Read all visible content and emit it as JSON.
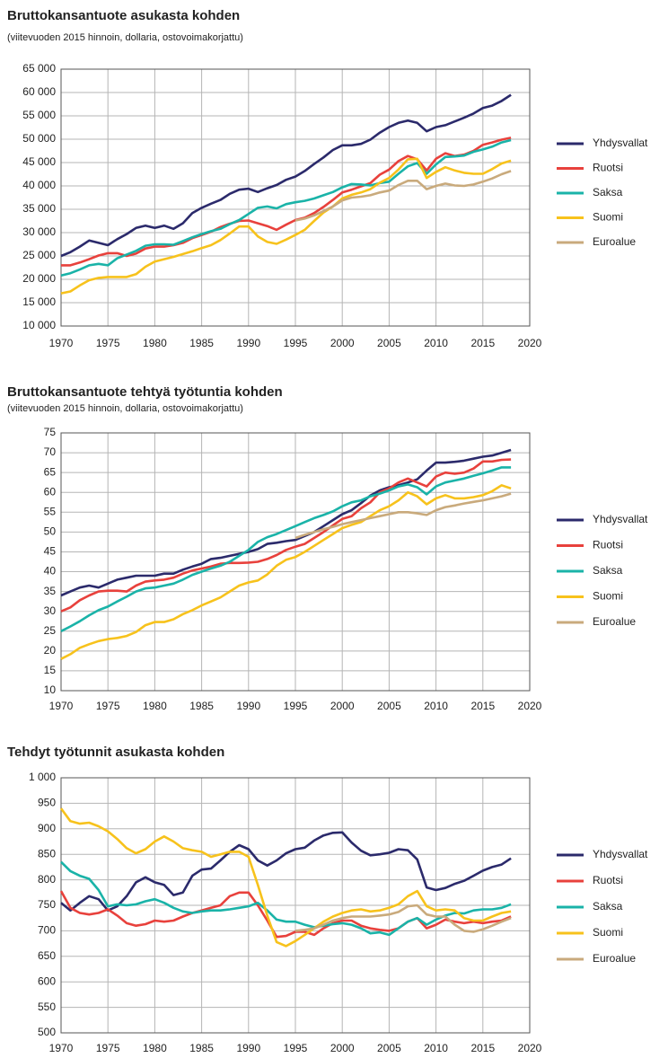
{
  "chart_data": [
    {
      "type": "line",
      "title": "Bruttokansantuote asukasta kohden",
      "subtitle": "(viitevuoden 2015 hinnoin, dollaria, ostovoimakorjattu)",
      "x": [
        1970,
        1971,
        1972,
        1973,
        1974,
        1975,
        1976,
        1977,
        1978,
        1979,
        1980,
        1981,
        1982,
        1983,
        1984,
        1985,
        1986,
        1987,
        1988,
        1989,
        1990,
        1991,
        1992,
        1993,
        1994,
        1995,
        1996,
        1997,
        1998,
        1999,
        2000,
        2001,
        2002,
        2003,
        2004,
        2005,
        2006,
        2007,
        2008,
        2009,
        2010,
        2011,
        2012,
        2013,
        2014,
        2015,
        2016,
        2017,
        2018
      ],
      "xlim": [
        1970,
        2020
      ],
      "xticks": [
        1970,
        1975,
        1980,
        1985,
        1990,
        1995,
        2000,
        2005,
        2010,
        2015,
        2020
      ],
      "ylim": [
        10000,
        65000
      ],
      "yticks": [
        {
          "value": 10000,
          "label": "10 000"
        },
        {
          "value": 15000,
          "label": "15 000"
        },
        {
          "value": 20000,
          "label": "20 000"
        },
        {
          "value": 25000,
          "label": "25 000"
        },
        {
          "value": 30000,
          "label": "30 000"
        },
        {
          "value": 35000,
          "label": "35 000"
        },
        {
          "value": 40000,
          "label": "40 000"
        },
        {
          "value": 45000,
          "label": "45 000"
        },
        {
          "value": 50000,
          "label": "50 000"
        },
        {
          "value": 55000,
          "label": "55 000"
        },
        {
          "value": 60000,
          "label": "60 000"
        },
        {
          "value": 65000,
          "label": "65 000"
        }
      ],
      "grid": true,
      "series": [
        {
          "name": "Yhdysvallat",
          "color": "#2b2a6b",
          "values": [
            25000,
            25800,
            27000,
            28300,
            27800,
            27300,
            28600,
            29700,
            31000,
            31500,
            31000,
            31500,
            30800,
            32000,
            34200,
            35300,
            36200,
            37000,
            38300,
            39200,
            39400,
            38700,
            39500,
            40200,
            41300,
            42000,
            43200,
            44700,
            46100,
            47700,
            48700,
            48700,
            49000,
            49900,
            51400,
            52600,
            53500,
            54000,
            53500,
            51700,
            52600,
            53000,
            53800,
            54600,
            55500,
            56700,
            57200,
            58200,
            59500
          ]
        },
        {
          "name": "Ruotsi",
          "color": "#e8413c",
          "values": [
            23000,
            23000,
            23600,
            24300,
            25100,
            25600,
            25600,
            25000,
            25500,
            26600,
            27000,
            27000,
            27300,
            27800,
            28800,
            29500,
            30200,
            31200,
            31900,
            32500,
            32600,
            32000,
            31400,
            30600,
            31700,
            32700,
            33200,
            34200,
            35500,
            37000,
            38600,
            39200,
            39900,
            40600,
            42400,
            43500,
            45300,
            46400,
            45700,
            43300,
            45800,
            47000,
            46400,
            46700,
            47500,
            48800,
            49300,
            49900,
            50300
          ]
        },
        {
          "name": "Saksa",
          "color": "#1ab3a8",
          "values": [
            20800,
            21300,
            22100,
            23000,
            23300,
            23000,
            24500,
            25300,
            26100,
            27200,
            27500,
            27500,
            27400,
            28200,
            29000,
            29700,
            30300,
            30800,
            31800,
            32700,
            34000,
            35300,
            35600,
            35200,
            36100,
            36500,
            36800,
            37300,
            38000,
            38700,
            39700,
            40400,
            40300,
            40100,
            40600,
            40900,
            42600,
            44200,
            44900,
            42600,
            44600,
            46200,
            46300,
            46500,
            47300,
            47800,
            48400,
            49300,
            49800
          ]
        },
        {
          "name": "Suomi",
          "color": "#f7c21c",
          "values": [
            17000,
            17400,
            18700,
            19800,
            20300,
            20500,
            20500,
            20500,
            21100,
            22700,
            23800,
            24300,
            24800,
            25400,
            26000,
            26700,
            27300,
            28400,
            29800,
            31300,
            31300,
            29200,
            28000,
            27600,
            28500,
            29500,
            30600,
            32500,
            34300,
            35600,
            37300,
            38100,
            38600,
            39300,
            40700,
            41700,
            43500,
            45700,
            45800,
            41700,
            43000,
            44000,
            43300,
            42800,
            42600,
            42600,
            43600,
            44800,
            45400
          ]
        },
        {
          "name": "Euroalue",
          "color": "#c9aa7c",
          "values": [
            null,
            null,
            null,
            null,
            null,
            null,
            null,
            null,
            null,
            null,
            null,
            null,
            null,
            null,
            null,
            null,
            null,
            null,
            null,
            null,
            null,
            null,
            null,
            null,
            null,
            32600,
            33000,
            33700,
            34600,
            35600,
            36900,
            37500,
            37700,
            38000,
            38600,
            39000,
            40200,
            41100,
            41100,
            39300,
            40000,
            40500,
            40100,
            40000,
            40300,
            40900,
            41600,
            42500,
            43200
          ]
        }
      ]
    },
    {
      "type": "line",
      "title": "Bruttokansantuote tehtyä työtuntia kohden",
      "subtitle": "(viitevuoden 2015 hinnoin, dollaria, ostovoimakorjattu)",
      "x": [
        1970,
        1971,
        1972,
        1973,
        1974,
        1975,
        1976,
        1977,
        1978,
        1979,
        1980,
        1981,
        1982,
        1983,
        1984,
        1985,
        1986,
        1987,
        1988,
        1989,
        1990,
        1991,
        1992,
        1993,
        1994,
        1995,
        1996,
        1997,
        1998,
        1999,
        2000,
        2001,
        2002,
        2003,
        2004,
        2005,
        2006,
        2007,
        2008,
        2009,
        2010,
        2011,
        2012,
        2013,
        2014,
        2015,
        2016,
        2017,
        2018
      ],
      "xlim": [
        1970,
        2020
      ],
      "xticks": [
        1970,
        1975,
        1980,
        1985,
        1990,
        1995,
        2000,
        2005,
        2010,
        2015,
        2020
      ],
      "ylim": [
        10,
        75
      ],
      "yticks": [
        10,
        15,
        20,
        25,
        30,
        35,
        40,
        45,
        50,
        55,
        60,
        65,
        70,
        75
      ],
      "grid": true,
      "series": [
        {
          "name": "Yhdysvallat",
          "color": "#2b2a6b",
          "values": [
            34,
            35,
            36,
            36.5,
            36,
            37,
            38,
            38.5,
            39,
            39,
            39,
            39.5,
            39.5,
            40.5,
            41.3,
            42,
            43.2,
            43.5,
            44,
            44.5,
            45,
            45.7,
            47,
            47.3,
            47.7,
            48,
            49,
            50,
            51.5,
            53,
            54.5,
            55.5,
            57.3,
            59.2,
            60.5,
            61.3,
            61.8,
            62.5,
            63.3,
            65.5,
            67.5,
            67.5,
            67.7,
            68,
            68.5,
            69,
            69.3,
            70,
            70.7
          ]
        },
        {
          "name": "Ruotsi",
          "color": "#e8413c",
          "values": [
            30,
            31,
            32.8,
            34,
            35,
            35.2,
            35.2,
            35,
            36.5,
            37.5,
            37.8,
            38,
            38.5,
            39.5,
            40.3,
            40.8,
            41.3,
            42,
            42.2,
            42.2,
            42.3,
            42.5,
            43.2,
            44.2,
            45.5,
            46.3,
            47,
            48.5,
            50,
            51.7,
            53.3,
            54,
            56,
            57.5,
            60,
            61,
            62.5,
            63.5,
            62.5,
            61.5,
            64,
            65,
            64.7,
            65,
            66,
            67.8,
            67.8,
            68.2,
            68.3
          ]
        },
        {
          "name": "Saksa",
          "color": "#1ab3a8",
          "values": [
            25,
            26.2,
            27.5,
            29,
            30.3,
            31.2,
            32.5,
            33.7,
            35,
            35.8,
            36,
            36.5,
            37,
            38,
            39.2,
            40,
            40.8,
            41.5,
            42.5,
            44,
            45.5,
            47.5,
            48.7,
            49.5,
            50.5,
            51.5,
            52.5,
            53.5,
            54.3,
            55.2,
            56.5,
            57.5,
            58,
            59,
            59.7,
            60.5,
            61.5,
            62,
            61.3,
            59.5,
            61.5,
            62.5,
            63,
            63.5,
            64.2,
            64.8,
            65.5,
            66.3,
            66.3
          ]
        },
        {
          "name": "Suomi",
          "color": "#f7c21c",
          "values": [
            18,
            19.2,
            20.8,
            21.7,
            22.5,
            23,
            23.3,
            23.8,
            24.8,
            26.5,
            27.3,
            27.3,
            28,
            29.3,
            30.3,
            31.5,
            32.5,
            33.5,
            35,
            36.5,
            37.3,
            37.8,
            39.3,
            41.5,
            43,
            43.7,
            45,
            46.5,
            48,
            49.5,
            51,
            51.8,
            52.5,
            54,
            55.5,
            56.5,
            58,
            60,
            59,
            57,
            58.5,
            59.3,
            58.5,
            58.5,
            58.8,
            59.3,
            60.3,
            61.8,
            61
          ]
        },
        {
          "name": "Euroalue",
          "color": "#c9aa7c",
          "values": [
            null,
            null,
            null,
            null,
            null,
            null,
            null,
            null,
            null,
            null,
            null,
            null,
            null,
            null,
            null,
            null,
            null,
            null,
            null,
            null,
            null,
            null,
            null,
            null,
            null,
            48.5,
            49.3,
            50,
            50.7,
            51.3,
            52,
            52.5,
            53,
            53.5,
            54,
            54.5,
            55,
            55,
            54.7,
            54.3,
            55.5,
            56.3,
            56.7,
            57.2,
            57.6,
            58,
            58.5,
            59,
            59.7
          ]
        }
      ]
    },
    {
      "type": "line",
      "title": "Tehdyt työtunnit asukasta kohden",
      "x": [
        1970,
        1971,
        1972,
        1973,
        1974,
        1975,
        1976,
        1977,
        1978,
        1979,
        1980,
        1981,
        1982,
        1983,
        1984,
        1985,
        1986,
        1987,
        1988,
        1989,
        1990,
        1991,
        1992,
        1993,
        1994,
        1995,
        1996,
        1997,
        1998,
        1999,
        2000,
        2001,
        2002,
        2003,
        2004,
        2005,
        2006,
        2007,
        2008,
        2009,
        2010,
        2011,
        2012,
        2013,
        2014,
        2015,
        2016,
        2017,
        2018
      ],
      "xlim": [
        1970,
        2020
      ],
      "xticks": [
        1970,
        1975,
        1980,
        1985,
        1990,
        1995,
        2000,
        2005,
        2010,
        2015,
        2020
      ],
      "ylim": [
        500,
        1000
      ],
      "yticks": [
        500,
        550,
        600,
        650,
        700,
        750,
        800,
        850,
        900,
        950,
        {
          "value": 1000,
          "label": "1 000"
        }
      ],
      "grid": true,
      "series": [
        {
          "name": "Yhdysvallat",
          "color": "#2b2a6b",
          "values": [
            755,
            740,
            755,
            768,
            762,
            740,
            748,
            768,
            795,
            805,
            795,
            790,
            770,
            775,
            808,
            820,
            822,
            838,
            855,
            868,
            860,
            838,
            828,
            838,
            852,
            860,
            863,
            877,
            887,
            892,
            893,
            873,
            857,
            848,
            850,
            853,
            860,
            858,
            840,
            785,
            780,
            784,
            792,
            798,
            808,
            818,
            825,
            830,
            842
          ]
        },
        {
          "name": "Ruotsi",
          "color": "#e8413c",
          "values": [
            778,
            745,
            735,
            732,
            735,
            742,
            730,
            715,
            710,
            713,
            720,
            718,
            720,
            728,
            735,
            740,
            745,
            750,
            768,
            775,
            775,
            750,
            720,
            688,
            690,
            698,
            698,
            692,
            705,
            715,
            720,
            720,
            710,
            705,
            702,
            700,
            705,
            718,
            725,
            705,
            712,
            722,
            718,
            715,
            718,
            715,
            718,
            720,
            728
          ]
        },
        {
          "name": "Saksa",
          "color": "#1ab3a8",
          "values": [
            835,
            817,
            808,
            802,
            780,
            748,
            752,
            750,
            752,
            758,
            762,
            755,
            745,
            738,
            735,
            738,
            740,
            740,
            742,
            745,
            748,
            755,
            740,
            722,
            718,
            718,
            712,
            707,
            710,
            713,
            715,
            712,
            705,
            695,
            697,
            692,
            705,
            718,
            725,
            712,
            722,
            730,
            735,
            734,
            740,
            742,
            742,
            745,
            752
          ]
        },
        {
          "name": "Suomi",
          "color": "#f7c21c",
          "values": [
            940,
            915,
            910,
            912,
            905,
            895,
            880,
            862,
            852,
            860,
            875,
            885,
            875,
            862,
            858,
            855,
            845,
            850,
            855,
            855,
            845,
            790,
            730,
            678,
            670,
            680,
            692,
            705,
            718,
            728,
            735,
            740,
            742,
            738,
            740,
            745,
            752,
            768,
            778,
            748,
            740,
            742,
            740,
            725,
            720,
            720,
            728,
            735,
            738
          ]
        },
        {
          "name": "Euroalue",
          "color": "#c9aa7c",
          "values": [
            null,
            null,
            null,
            null,
            null,
            null,
            null,
            null,
            null,
            null,
            null,
            null,
            null,
            null,
            null,
            null,
            null,
            null,
            null,
            null,
            null,
            null,
            null,
            null,
            null,
            700,
            702,
            705,
            712,
            720,
            725,
            728,
            728,
            728,
            730,
            732,
            737,
            748,
            750,
            732,
            728,
            728,
            712,
            700,
            698,
            703,
            710,
            718,
            725
          ]
        }
      ]
    }
  ]
}
